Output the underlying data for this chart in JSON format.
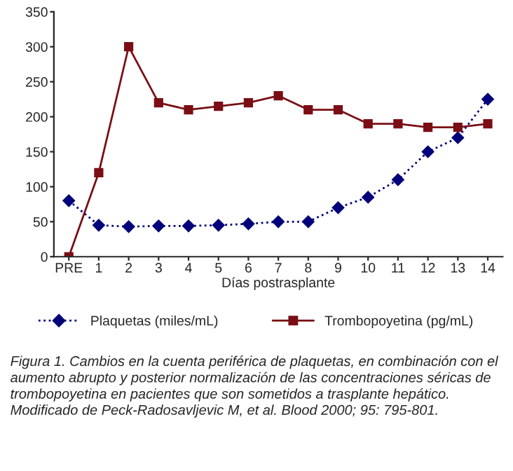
{
  "chart_data": {
    "type": "line",
    "xlabel": "Días postrasplante",
    "categories": [
      "PRE",
      "1",
      "2",
      "3",
      "4",
      "5",
      "6",
      "7",
      "8",
      "9",
      "10",
      "11",
      "12",
      "13",
      "14"
    ],
    "series": [
      {
        "name": "Plaquetas (miles/mL)",
        "color": "#00007a",
        "marker": "diamond",
        "line_style": "dotted",
        "values": [
          80,
          45,
          43,
          44,
          44,
          45,
          47,
          50,
          50,
          70,
          85,
          110,
          150,
          170,
          225
        ]
      },
      {
        "name": "Trombopoyetina (pg/mL)",
        "color": "#7a0e14",
        "marker": "square",
        "line_style": "solid",
        "values": [
          0,
          120,
          300,
          220,
          210,
          215,
          220,
          230,
          210,
          210,
          190,
          190,
          185,
          185,
          190
        ]
      }
    ],
    "ylim": [
      0,
      350
    ],
    "yticks": [
      0,
      50,
      100,
      150,
      200,
      250,
      300,
      350
    ],
    "grid": false,
    "legend": "bottom",
    "annotations": [
      "Figura 1. Cambios en la cuenta periférica de plaquetas, en combinación con el aumento abrupto y posterior normalización de las concentraciones séricas de trombopoyetina en pacientes que son sometidos a trasplante hepático. Modificado de Peck-Radosavljevic M, et al. Blood 2000; 95: 795-801."
    ]
  }
}
